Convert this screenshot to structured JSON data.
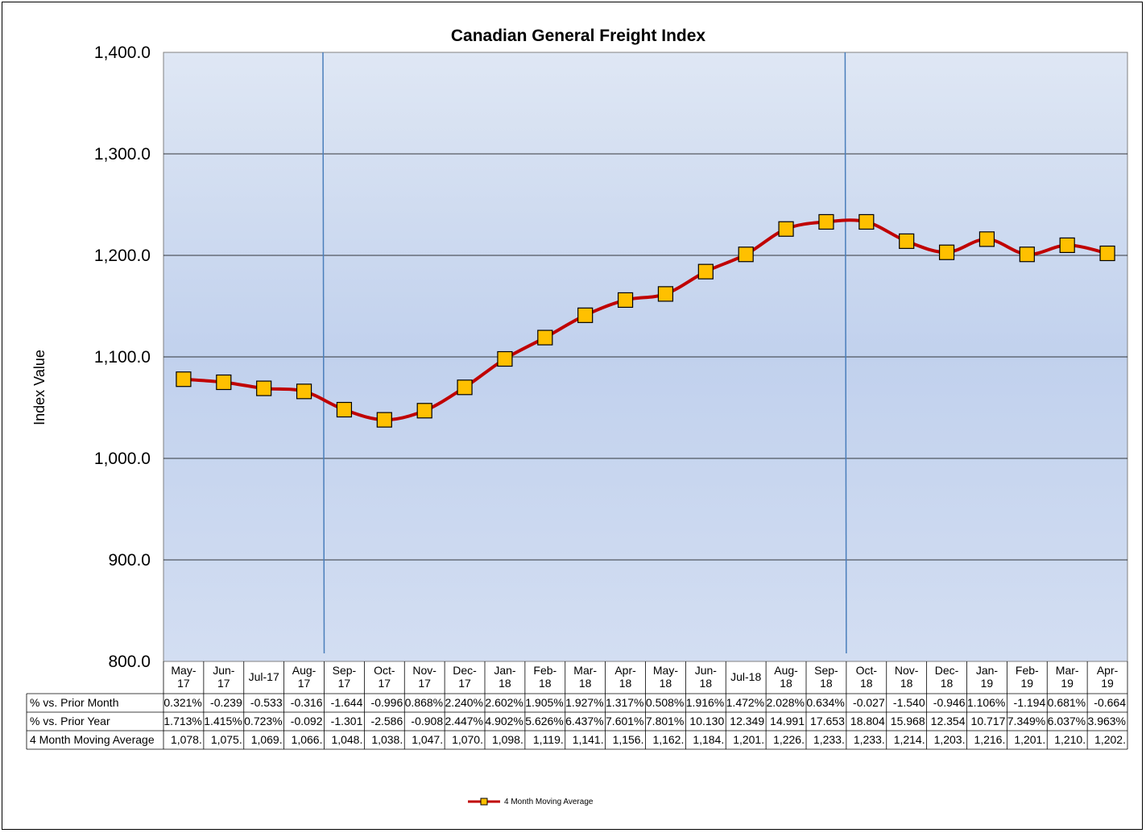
{
  "chart_data": {
    "type": "line",
    "title": "Canadian General Freight Index",
    "xlabel": "",
    "ylabel": "Index Value",
    "ylim": [
      800,
      1400
    ],
    "y_ticks": [
      "1,400.0",
      "1,300.0",
      "1,200.0",
      "1,100.0",
      "1,000.0",
      "900.0",
      "800.0"
    ],
    "grid": true,
    "legend_position": "bottom-center",
    "categories": [
      [
        "May-",
        "17"
      ],
      [
        "Jun-",
        "17"
      ],
      [
        "Jul-17"
      ],
      [
        "Aug-",
        "17"
      ],
      [
        "Sep-",
        "17"
      ],
      [
        "Oct-",
        "17"
      ],
      [
        "Nov-",
        "17"
      ],
      [
        "Dec-",
        "17"
      ],
      [
        "Jan-",
        "18"
      ],
      [
        "Feb-",
        "18"
      ],
      [
        "Mar-",
        "18"
      ],
      [
        "Apr-",
        "18"
      ],
      [
        "May-",
        "18"
      ],
      [
        "Jun-",
        "18"
      ],
      [
        "Jul-18"
      ],
      [
        "Aug-",
        "18"
      ],
      [
        "Sep-",
        "18"
      ],
      [
        "Oct-",
        "18"
      ],
      [
        "Nov-",
        "18"
      ],
      [
        "Dec-",
        "18"
      ],
      [
        "Jan-",
        "19"
      ],
      [
        "Feb-",
        "19"
      ],
      [
        "Mar-",
        "19"
      ],
      [
        "Apr-",
        "19"
      ]
    ],
    "series": [
      {
        "name": "4 Month Moving Average",
        "color": "#c00000",
        "marker_color": "#ffc000",
        "values": [
          1078,
          1075,
          1069,
          1066,
          1048,
          1038,
          1047,
          1070,
          1098,
          1119,
          1141,
          1156,
          1162,
          1184,
          1201,
          1226,
          1233,
          1233,
          1214,
          1203,
          1216,
          1201,
          1210,
          1202
        ]
      }
    ],
    "vertical_markers": [
      {
        "after_category": 3,
        "color": "#4a7ebb"
      },
      {
        "after_category": 16,
        "color": "#4a7ebb"
      }
    ],
    "table": {
      "rows": [
        {
          "label": "% vs. Prior Month",
          "cells": [
            "0.321%",
            "-0.239",
            "-0.533",
            "-0.316",
            "-1.644",
            "-0.996",
            "0.868%",
            "2.240%",
            "2.602%",
            "1.905%",
            "1.927%",
            "1.317%",
            "0.508%",
            "1.916%",
            "1.472%",
            "2.028%",
            "0.634%",
            "-0.027",
            "-1.540",
            "-0.946",
            "1.106%",
            "-1.194",
            "0.681%",
            "-0.664"
          ]
        },
        {
          "label": "% vs. Prior Year",
          "cells": [
            "1.713%",
            "1.415%",
            "0.723%",
            "-0.092",
            "-1.301",
            "-2.586",
            "-0.908",
            "2.447%",
            "4.902%",
            "5.626%",
            "6.437%",
            "7.601%",
            "7.801%",
            "10.130",
            "12.349",
            "14.991",
            "17.653",
            "18.804",
            "15.968",
            "12.354",
            "10.717",
            "7.349%",
            "6.037%",
            "3.963%"
          ]
        },
        {
          "label": "4 Month Moving Average",
          "cells": [
            "1,078.",
            "1,075.",
            "1,069.",
            "1,066.",
            "1,048.",
            "1,038.",
            "1,047.",
            "1,070.",
            "1,098.",
            "1,119.",
            "1,141.",
            "1,156.",
            "1,162.",
            "1,184.",
            "1,201.",
            "1,226.",
            "1,233.",
            "1,233.",
            "1,214.",
            "1,203.",
            "1,216.",
            "1,201.",
            "1,210.",
            "1,202."
          ]
        }
      ]
    }
  }
}
